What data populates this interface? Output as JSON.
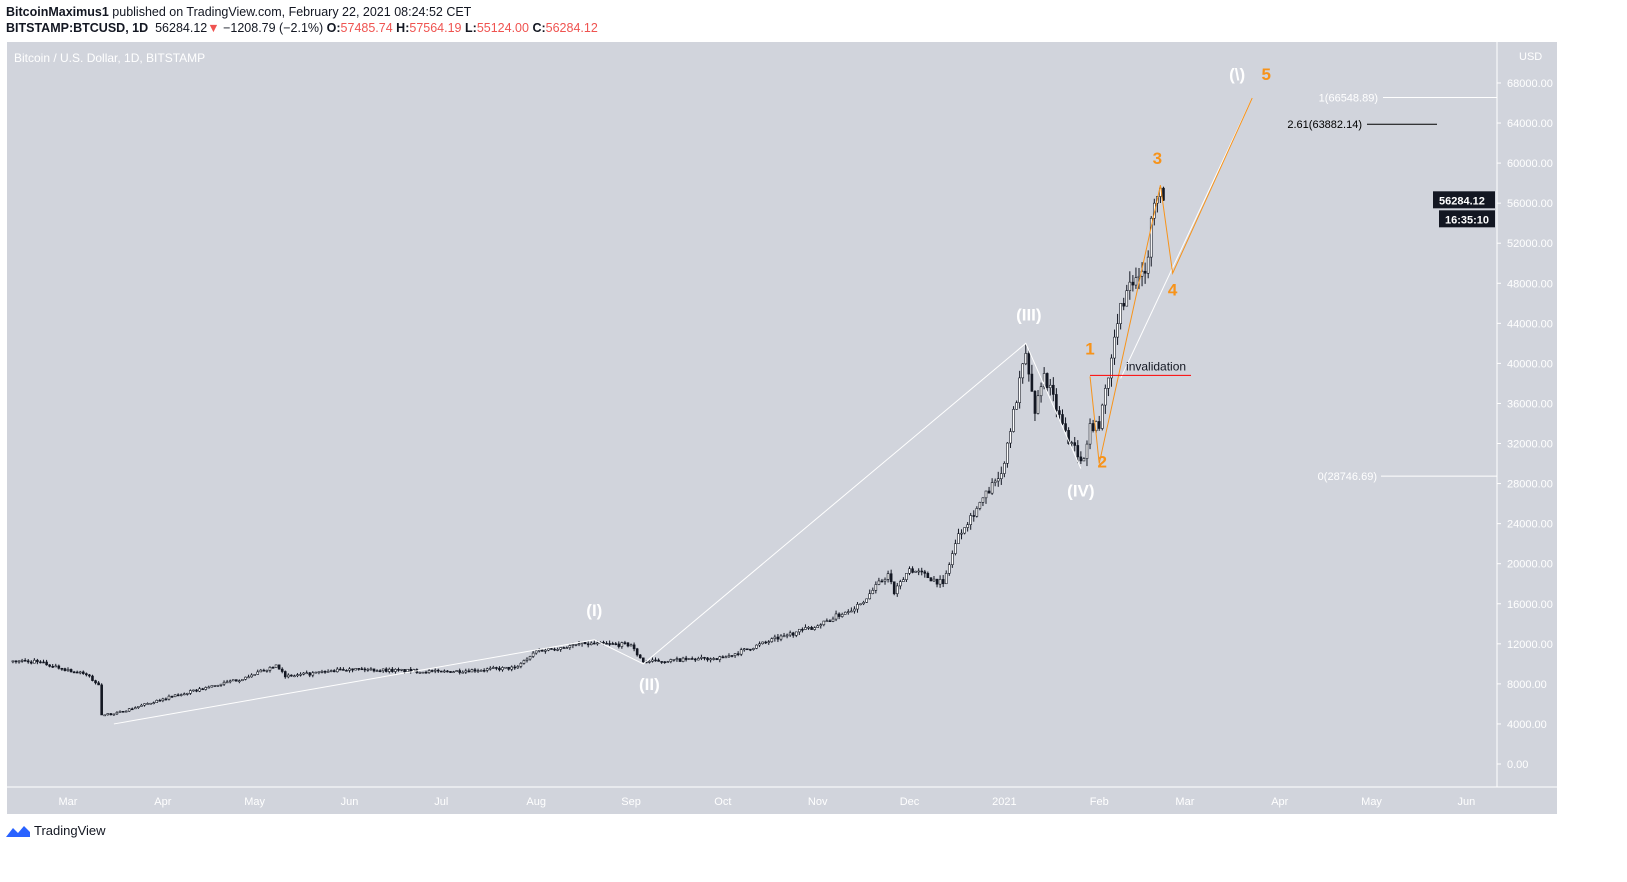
{
  "header": {
    "author": "BitcoinMaximus1",
    "published": "published on TradingView.com, February 22, 2021 08:24:52 CET",
    "symbol": "BITSTAMP:BTCUSD, 1D",
    "last": "56284.12",
    "change": "−1208.79 (−2.1%)",
    "o_label": "O:",
    "o": "57485.74",
    "h_label": "H:",
    "h": "57564.19",
    "l_label": "L:",
    "l": "55124.00",
    "c_label": "C:",
    "c": "56284.12"
  },
  "footer": {
    "brand": "TradingView"
  },
  "chart_data": {
    "type": "candlestick",
    "title": "Bitcoin / U.S. Dollar, 1D, BITSTAMP",
    "currency": "USD",
    "ylim": [
      -2000,
      72000
    ],
    "yticks": [
      0,
      4000,
      8000,
      12000,
      16000,
      20000,
      24000,
      28000,
      32000,
      36000,
      40000,
      44000,
      48000,
      52000,
      56000,
      60000,
      64000,
      68000
    ],
    "xticks": [
      {
        "date": "2020-03-01",
        "label": "Mar"
      },
      {
        "date": "2020-04-01",
        "label": "Apr"
      },
      {
        "date": "2020-05-01",
        "label": "May"
      },
      {
        "date": "2020-06-01",
        "label": "Jun"
      },
      {
        "date": "2020-07-01",
        "label": "Jul"
      },
      {
        "date": "2020-08-01",
        "label": "Aug"
      },
      {
        "date": "2020-09-01",
        "label": "Sep"
      },
      {
        "date": "2020-10-01",
        "label": "Oct"
      },
      {
        "date": "2020-11-01",
        "label": "Nov"
      },
      {
        "date": "2020-12-01",
        "label": "Dec"
      },
      {
        "date": "2021-01-01",
        "label": "2021"
      },
      {
        "date": "2021-02-01",
        "label": "Feb"
      },
      {
        "date": "2021-03-01",
        "label": "Mar"
      },
      {
        "date": "2021-04-01",
        "label": "Apr"
      },
      {
        "date": "2021-05-01",
        "label": "May"
      },
      {
        "date": "2021-06-01",
        "label": "Jun"
      }
    ],
    "close_anchors": [
      [
        "2020-02-12",
        10300
      ],
      [
        "2020-02-20",
        10200
      ],
      [
        "2020-03-07",
        8900
      ],
      [
        "2020-03-11",
        7900
      ],
      [
        "2020-03-12",
        4900
      ],
      [
        "2020-03-16",
        5000
      ],
      [
        "2020-04-01",
        6500
      ],
      [
        "2020-04-29",
        8700
      ],
      [
        "2020-05-08",
        9900
      ],
      [
        "2020-05-11",
        8700
      ],
      [
        "2020-06-01",
        9500
      ],
      [
        "2020-07-01",
        9200
      ],
      [
        "2020-07-25",
        9600
      ],
      [
        "2020-08-01",
        11300
      ],
      [
        "2020-08-17",
        12000
      ],
      [
        "2020-09-01",
        11900
      ],
      [
        "2020-09-05",
        10200
      ],
      [
        "2020-10-01",
        10600
      ],
      [
        "2020-10-21",
        12800
      ],
      [
        "2020-11-01",
        13800
      ],
      [
        "2020-11-15",
        16000
      ],
      [
        "2020-11-24",
        19000
      ],
      [
        "2020-11-26",
        17000
      ],
      [
        "2020-12-01",
        19500
      ],
      [
        "2020-12-12",
        18000
      ],
      [
        "2020-12-17",
        23000
      ],
      [
        "2020-12-31",
        29000
      ],
      [
        "2021-01-08",
        41000
      ],
      [
        "2021-01-11",
        35000
      ],
      [
        "2021-01-14",
        39000
      ],
      [
        "2021-01-22",
        32000
      ],
      [
        "2021-01-27",
        30500
      ],
      [
        "2021-01-29",
        34000
      ],
      [
        "2021-02-01",
        33500
      ],
      [
        "2021-02-08",
        46000
      ],
      [
        "2021-02-14",
        48700
      ],
      [
        "2021-02-16",
        49000
      ],
      [
        "2021-02-19",
        56000
      ],
      [
        "2021-02-21",
        57500
      ],
      [
        "2021-02-22",
        56284.12
      ]
    ],
    "last_price": "56284.12",
    "countdown": "16:35:10",
    "wave_lines": [
      {
        "color": "#ffffff",
        "points": [
          [
            "2020-03-16",
            4000
          ],
          [
            "2020-08-20",
            12400
          ],
          [
            "2020-09-05",
            10000
          ],
          [
            "2021-01-08",
            42000
          ],
          [
            "2021-01-26",
            29500
          ]
        ]
      },
      {
        "color": "#ffffff",
        "points": [
          [
            "2021-02-08",
            38500
          ],
          [
            "2021-03-23",
            66500
          ]
        ]
      },
      {
        "color": "#f7931a",
        "points": [
          [
            "2021-01-29",
            38700
          ],
          [
            "2021-02-01",
            30000
          ],
          [
            "2021-02-21",
            57800
          ],
          [
            "2021-02-25",
            49000
          ],
          [
            "2021-03-23",
            66500
          ]
        ]
      }
    ],
    "wave_labels": [
      {
        "text": "(I)",
        "date": "2020-08-20",
        "price": 14800,
        "color": "#ffffff"
      },
      {
        "text": "(II)",
        "date": "2020-09-07",
        "price": 7400,
        "color": "#ffffff"
      },
      {
        "text": "(III)",
        "date": "2021-01-09",
        "price": 44300,
        "color": "#ffffff"
      },
      {
        "text": "(IV)",
        "date": "2021-01-26",
        "price": 26700,
        "color": "#ffffff"
      },
      {
        "text": "(\\)",
        "date": "2021-03-22",
        "price": 68300,
        "color": "#ffffff"
      },
      {
        "text": "5",
        "date": "2021-03-23",
        "price": 68300,
        "color": "#f7931a"
      },
      {
        "text": "1",
        "date": "2021-01-29",
        "price": 40900,
        "color": "#f7931a"
      },
      {
        "text": "2",
        "date": "2021-02-02",
        "price": 29600,
        "color": "#f7931a"
      },
      {
        "text": "3",
        "date": "2021-02-20",
        "price": 59900,
        "color": "#f7931a"
      },
      {
        "text": "4",
        "date": "2021-02-25",
        "price": 46800,
        "color": "#f7931a"
      }
    ],
    "invalidation": {
      "label": "invalidation",
      "price": 38800,
      "from": "2021-01-29",
      "to": "2021-03-03",
      "color": "#ff0000"
    },
    "fib_levels": [
      {
        "label": "1(66548.89)",
        "price": 66548.89,
        "color": "#ffffff"
      },
      {
        "label": "2.61(63882.14)",
        "price": 63882.14,
        "color": "#000000"
      },
      {
        "label": "0(28746.69)",
        "price": 28746.69,
        "color": "#ffffff"
      }
    ],
    "colors": {
      "background": "#d1d4dc",
      "candle": "#131722",
      "label": "#ffffff"
    }
  }
}
